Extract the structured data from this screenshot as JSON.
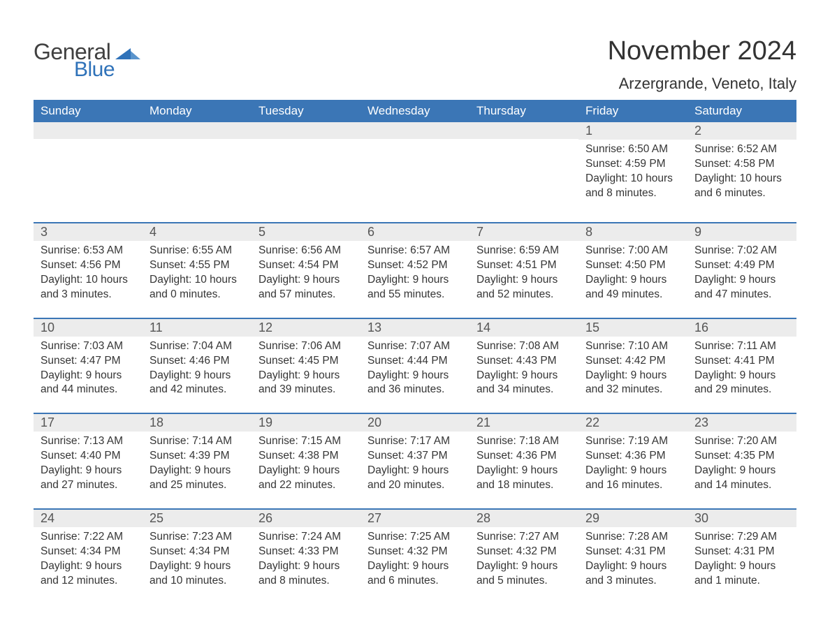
{
  "brand": {
    "name_a": "General",
    "name_b": "Blue",
    "triangle_color": "#2f72b9"
  },
  "title": "November 2024",
  "location": "Arzergrande, Veneto, Italy",
  "header_bg": "#3b76b6",
  "header_fg": "#ffffff",
  "daynum_bg": "#ececec",
  "page_bg": "#ffffff",
  "text_color": "#333333",
  "day_names": [
    "Sunday",
    "Monday",
    "Tuesday",
    "Wednesday",
    "Thursday",
    "Friday",
    "Saturday"
  ],
  "weeks": [
    [
      {
        "n": "",
        "sr": "",
        "ss": "",
        "dl": ""
      },
      {
        "n": "",
        "sr": "",
        "ss": "",
        "dl": ""
      },
      {
        "n": "",
        "sr": "",
        "ss": "",
        "dl": ""
      },
      {
        "n": "",
        "sr": "",
        "ss": "",
        "dl": ""
      },
      {
        "n": "",
        "sr": "",
        "ss": "",
        "dl": ""
      },
      {
        "n": "1",
        "sr": "Sunrise: 6:50 AM",
        "ss": "Sunset: 4:59 PM",
        "dl": "Daylight: 10 hours and 8 minutes."
      },
      {
        "n": "2",
        "sr": "Sunrise: 6:52 AM",
        "ss": "Sunset: 4:58 PM",
        "dl": "Daylight: 10 hours and 6 minutes."
      }
    ],
    [
      {
        "n": "3",
        "sr": "Sunrise: 6:53 AM",
        "ss": "Sunset: 4:56 PM",
        "dl": "Daylight: 10 hours and 3 minutes."
      },
      {
        "n": "4",
        "sr": "Sunrise: 6:55 AM",
        "ss": "Sunset: 4:55 PM",
        "dl": "Daylight: 10 hours and 0 minutes."
      },
      {
        "n": "5",
        "sr": "Sunrise: 6:56 AM",
        "ss": "Sunset: 4:54 PM",
        "dl": "Daylight: 9 hours and 57 minutes."
      },
      {
        "n": "6",
        "sr": "Sunrise: 6:57 AM",
        "ss": "Sunset: 4:52 PM",
        "dl": "Daylight: 9 hours and 55 minutes."
      },
      {
        "n": "7",
        "sr": "Sunrise: 6:59 AM",
        "ss": "Sunset: 4:51 PM",
        "dl": "Daylight: 9 hours and 52 minutes."
      },
      {
        "n": "8",
        "sr": "Sunrise: 7:00 AM",
        "ss": "Sunset: 4:50 PM",
        "dl": "Daylight: 9 hours and 49 minutes."
      },
      {
        "n": "9",
        "sr": "Sunrise: 7:02 AM",
        "ss": "Sunset: 4:49 PM",
        "dl": "Daylight: 9 hours and 47 minutes."
      }
    ],
    [
      {
        "n": "10",
        "sr": "Sunrise: 7:03 AM",
        "ss": "Sunset: 4:47 PM",
        "dl": "Daylight: 9 hours and 44 minutes."
      },
      {
        "n": "11",
        "sr": "Sunrise: 7:04 AM",
        "ss": "Sunset: 4:46 PM",
        "dl": "Daylight: 9 hours and 42 minutes."
      },
      {
        "n": "12",
        "sr": "Sunrise: 7:06 AM",
        "ss": "Sunset: 4:45 PM",
        "dl": "Daylight: 9 hours and 39 minutes."
      },
      {
        "n": "13",
        "sr": "Sunrise: 7:07 AM",
        "ss": "Sunset: 4:44 PM",
        "dl": "Daylight: 9 hours and 36 minutes."
      },
      {
        "n": "14",
        "sr": "Sunrise: 7:08 AM",
        "ss": "Sunset: 4:43 PM",
        "dl": "Daylight: 9 hours and 34 minutes."
      },
      {
        "n": "15",
        "sr": "Sunrise: 7:10 AM",
        "ss": "Sunset: 4:42 PM",
        "dl": "Daylight: 9 hours and 32 minutes."
      },
      {
        "n": "16",
        "sr": "Sunrise: 7:11 AM",
        "ss": "Sunset: 4:41 PM",
        "dl": "Daylight: 9 hours and 29 minutes."
      }
    ],
    [
      {
        "n": "17",
        "sr": "Sunrise: 7:13 AM",
        "ss": "Sunset: 4:40 PM",
        "dl": "Daylight: 9 hours and 27 minutes."
      },
      {
        "n": "18",
        "sr": "Sunrise: 7:14 AM",
        "ss": "Sunset: 4:39 PM",
        "dl": "Daylight: 9 hours and 25 minutes."
      },
      {
        "n": "19",
        "sr": "Sunrise: 7:15 AM",
        "ss": "Sunset: 4:38 PM",
        "dl": "Daylight: 9 hours and 22 minutes."
      },
      {
        "n": "20",
        "sr": "Sunrise: 7:17 AM",
        "ss": "Sunset: 4:37 PM",
        "dl": "Daylight: 9 hours and 20 minutes."
      },
      {
        "n": "21",
        "sr": "Sunrise: 7:18 AM",
        "ss": "Sunset: 4:36 PM",
        "dl": "Daylight: 9 hours and 18 minutes."
      },
      {
        "n": "22",
        "sr": "Sunrise: 7:19 AM",
        "ss": "Sunset: 4:36 PM",
        "dl": "Daylight: 9 hours and 16 minutes."
      },
      {
        "n": "23",
        "sr": "Sunrise: 7:20 AM",
        "ss": "Sunset: 4:35 PM",
        "dl": "Daylight: 9 hours and 14 minutes."
      }
    ],
    [
      {
        "n": "24",
        "sr": "Sunrise: 7:22 AM",
        "ss": "Sunset: 4:34 PM",
        "dl": "Daylight: 9 hours and 12 minutes."
      },
      {
        "n": "25",
        "sr": "Sunrise: 7:23 AM",
        "ss": "Sunset: 4:34 PM",
        "dl": "Daylight: 9 hours and 10 minutes."
      },
      {
        "n": "26",
        "sr": "Sunrise: 7:24 AM",
        "ss": "Sunset: 4:33 PM",
        "dl": "Daylight: 9 hours and 8 minutes."
      },
      {
        "n": "27",
        "sr": "Sunrise: 7:25 AM",
        "ss": "Sunset: 4:32 PM",
        "dl": "Daylight: 9 hours and 6 minutes."
      },
      {
        "n": "28",
        "sr": "Sunrise: 7:27 AM",
        "ss": "Sunset: 4:32 PM",
        "dl": "Daylight: 9 hours and 5 minutes."
      },
      {
        "n": "29",
        "sr": "Sunrise: 7:28 AM",
        "ss": "Sunset: 4:31 PM",
        "dl": "Daylight: 9 hours and 3 minutes."
      },
      {
        "n": "30",
        "sr": "Sunrise: 7:29 AM",
        "ss": "Sunset: 4:31 PM",
        "dl": "Daylight: 9 hours and 1 minute."
      }
    ]
  ]
}
